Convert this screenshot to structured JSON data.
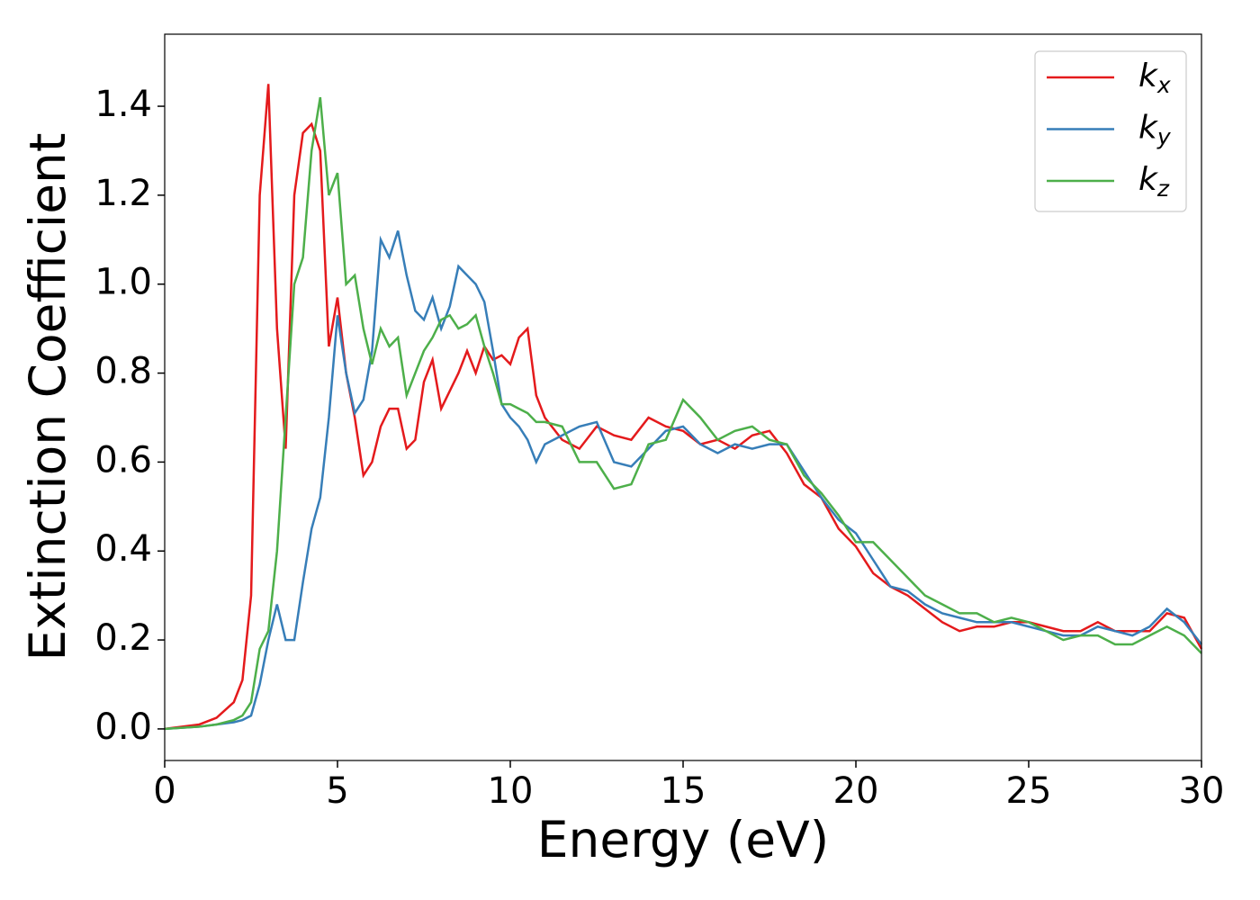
{
  "chart_data": {
    "type": "line",
    "x_label": "Energy (eV)",
    "y_label": "Extinction Coefficient",
    "x": [
      0,
      1,
      1.5,
      2,
      2.25,
      2.5,
      2.75,
      3,
      3.25,
      3.5,
      3.75,
      4,
      4.25,
      4.5,
      4.75,
      5,
      5.25,
      5.5,
      5.75,
      6,
      6.25,
      6.5,
      6.75,
      7,
      7.25,
      7.5,
      7.75,
      8,
      8.25,
      8.5,
      8.75,
      9,
      9.25,
      9.5,
      9.75,
      10,
      10.25,
      10.5,
      10.75,
      11,
      11.5,
      12,
      12.5,
      13,
      13.5,
      14,
      14.5,
      15,
      15.5,
      16,
      16.5,
      17,
      17.5,
      18,
      18.5,
      19,
      19.5,
      20,
      20.5,
      21,
      21.5,
      22,
      22.5,
      23,
      23.5,
      24,
      24.5,
      25,
      25.5,
      26,
      26.5,
      27,
      27.5,
      28,
      28.5,
      29,
      29.5,
      30
    ],
    "series": [
      {
        "name": "kx",
        "color": "#e41a1c",
        "values": [
          0,
          0.01,
          0.025,
          0.06,
          0.11,
          0.3,
          1.2,
          1.45,
          0.9,
          0.63,
          1.2,
          1.34,
          1.36,
          1.3,
          0.86,
          0.97,
          0.8,
          0.7,
          0.57,
          0.6,
          0.68,
          0.72,
          0.72,
          0.63,
          0.65,
          0.78,
          0.83,
          0.72,
          0.76,
          0.8,
          0.85,
          0.8,
          0.86,
          0.83,
          0.84,
          0.82,
          0.88,
          0.9,
          0.75,
          0.7,
          0.65,
          0.63,
          0.68,
          0.66,
          0.65,
          0.7,
          0.68,
          0.67,
          0.64,
          0.65,
          0.63,
          0.66,
          0.67,
          0.62,
          0.55,
          0.52,
          0.45,
          0.41,
          0.35,
          0.32,
          0.3,
          0.27,
          0.24,
          0.22,
          0.23,
          0.23,
          0.24,
          0.24,
          0.23,
          0.22,
          0.22,
          0.24,
          0.22,
          0.22,
          0.22,
          0.26,
          0.25,
          0.18
        ]
      },
      {
        "name": "ky",
        "color": "#377eb8",
        "values": [
          0,
          0.005,
          0.01,
          0.015,
          0.02,
          0.03,
          0.1,
          0.2,
          0.28,
          0.2,
          0.2,
          0.33,
          0.45,
          0.52,
          0.7,
          0.93,
          0.8,
          0.71,
          0.74,
          0.85,
          1.1,
          1.06,
          1.12,
          1.02,
          0.94,
          0.92,
          0.97,
          0.9,
          0.95,
          1.04,
          1.02,
          1.0,
          0.96,
          0.85,
          0.73,
          0.7,
          0.68,
          0.65,
          0.6,
          0.64,
          0.66,
          0.68,
          0.69,
          0.6,
          0.59,
          0.63,
          0.67,
          0.68,
          0.64,
          0.62,
          0.64,
          0.63,
          0.64,
          0.64,
          0.58,
          0.52,
          0.47,
          0.44,
          0.38,
          0.32,
          0.31,
          0.28,
          0.26,
          0.25,
          0.24,
          0.24,
          0.24,
          0.23,
          0.22,
          0.21,
          0.21,
          0.23,
          0.22,
          0.21,
          0.23,
          0.27,
          0.24,
          0.19
        ]
      },
      {
        "name": "kz",
        "color": "#4daf4a",
        "values": [
          0,
          0.005,
          0.01,
          0.02,
          0.03,
          0.06,
          0.18,
          0.22,
          0.4,
          0.7,
          1.0,
          1.06,
          1.3,
          1.42,
          1.2,
          1.25,
          1.0,
          1.02,
          0.9,
          0.82,
          0.9,
          0.86,
          0.88,
          0.75,
          0.8,
          0.85,
          0.88,
          0.92,
          0.93,
          0.9,
          0.91,
          0.93,
          0.86,
          0.8,
          0.73,
          0.73,
          0.72,
          0.71,
          0.69,
          0.69,
          0.68,
          0.6,
          0.6,
          0.54,
          0.55,
          0.64,
          0.65,
          0.74,
          0.7,
          0.65,
          0.67,
          0.68,
          0.65,
          0.64,
          0.57,
          0.53,
          0.48,
          0.42,
          0.42,
          0.38,
          0.34,
          0.3,
          0.28,
          0.26,
          0.26,
          0.24,
          0.25,
          0.24,
          0.22,
          0.2,
          0.21,
          0.21,
          0.19,
          0.19,
          0.21,
          0.23,
          0.21,
          0.17
        ]
      }
    ],
    "xlim": [
      0,
      30
    ],
    "xticks": [
      0,
      5,
      10,
      15,
      20,
      25,
      30
    ],
    "ylim": [
      -0.071,
      1.562
    ],
    "yticks": [
      {
        "value": 0,
        "label": "0.0"
      },
      0.2,
      0.4,
      0.6,
      0.8,
      {
        "value": 1,
        "label": "1.0"
      },
      1.2,
      1.4
    ],
    "legend": "upper right"
  }
}
